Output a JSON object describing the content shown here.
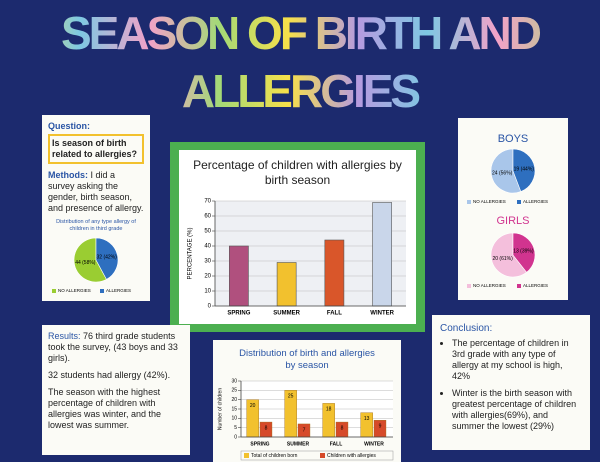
{
  "title": "SEASON OF BIRTH AND ALLERGIES",
  "question": {
    "heading": "Question:",
    "text": "Is season of birth related to allergies?"
  },
  "methods": {
    "heading": "Methods:",
    "text": "I did a survey asking the gender, birth season, and presence of allergy."
  },
  "results": {
    "heading": "Results:",
    "paragraphs": [
      "76 third grade students took the survey, (43 boys and 33 girls).",
      "32 students had allergy (42%).",
      "The season with the highest percentage of children with allergies was winter, and the lowest was summer."
    ]
  },
  "conclusion": {
    "heading": "Conclusion:",
    "bullets": [
      "The percentage of children in 3rd grade with any type of allergy at my school is high, 42%",
      "Winter is the birth season with greatest percentage of children with allergies(69%), and summer the lowest (29%)"
    ]
  },
  "chart_data": [
    {
      "type": "bar",
      "title": "Percentage of children with allergies by birth season",
      "ylabel": "PERCENTAGE (%)",
      "categories": [
        "SPRING",
        "SUMMER",
        "FALL",
        "WINTER"
      ],
      "values": [
        40,
        29,
        44,
        69
      ],
      "colors": [
        "#b0507e",
        "#f2c12e",
        "#d9562a",
        "#c9d6ea"
      ],
      "ylim": [
        0,
        70
      ],
      "yticks": [
        0,
        10,
        20,
        30,
        40,
        50,
        60,
        70
      ],
      "grid": true
    },
    {
      "type": "bar",
      "title": "Distribution of birth and allergies by season",
      "ylabel": "Number of children",
      "categories": [
        "SPRING",
        "SUMMER",
        "FALL",
        "WINTER"
      ],
      "series": [
        {
          "name": "Total of children born",
          "color": "#f2c12e",
          "values": [
            20,
            25,
            18,
            13
          ]
        },
        {
          "name": "Children with allergies",
          "color": "#d64a2a",
          "values": [
            8,
            7,
            8,
            9
          ]
        }
      ],
      "ylim": [
        0,
        30
      ],
      "yticks": [
        0,
        5,
        10,
        15,
        20,
        25,
        30
      ],
      "grid": true,
      "show_values": true
    },
    {
      "type": "pie",
      "title": "Distribution of any type allergy of children in third grade",
      "categories": [
        "NO ALLERGIES",
        "ALLERGIES"
      ],
      "values": [
        44,
        32
      ],
      "value_labels": [
        "44 (58%)",
        "32 (42%)"
      ],
      "colors": [
        "#9acd32",
        "#2e6fbf"
      ]
    },
    {
      "type": "pie",
      "title": "BOYS",
      "categories": [
        "NO ALLERGIES",
        "ALLERGIES"
      ],
      "values": [
        24,
        19
      ],
      "value_labels": [
        "24 (56%)",
        "19 (44%)"
      ],
      "colors": [
        "#a9c6ea",
        "#2e6fbf"
      ]
    },
    {
      "type": "pie",
      "title": "GIRLS",
      "categories": [
        "NO ALLERGIES",
        "ALLERGIES"
      ],
      "values": [
        20,
        13
      ],
      "value_labels": [
        "20 (61%)",
        "13 (39%)"
      ],
      "colors": [
        "#f4bfdc",
        "#d1348f"
      ]
    }
  ]
}
